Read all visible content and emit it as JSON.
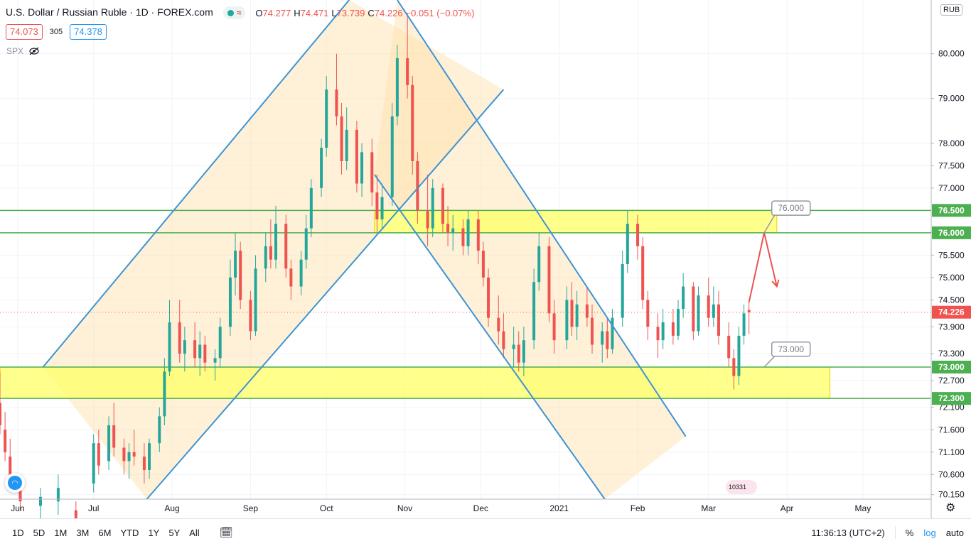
{
  "header": {
    "title": "U.S. Dollar / Russian Ruble · 1D · FOREX.com",
    "ohlc": [
      {
        "k": "O",
        "v": "74.277"
      },
      {
        "k": "H",
        "v": "74.471"
      },
      {
        "k": "L",
        "v": "73.739"
      },
      {
        "k": "C",
        "v": "74.226"
      },
      {
        "k": "",
        "v": "−0.051 (−0.07%)"
      }
    ]
  },
  "quote": {
    "bid": "74.073",
    "spread": "305",
    "ask": "74.378"
  },
  "overlay": {
    "symbol": "SPX"
  },
  "currency_label": "RUB",
  "timeframes": [
    "1D",
    "5D",
    "1M",
    "3M",
    "6M",
    "YTD",
    "1Y",
    "5Y",
    "All"
  ],
  "bottom_right": {
    "time": "11:36:13 (UTC+2)",
    "percent": "%",
    "log": "log",
    "auto": "auto"
  },
  "flag_text": "10331",
  "chart_data": {
    "type": "candlestick",
    "title": "U.S. Dollar / Russian Ruble · 1D · FOREX.com",
    "y_axis": {
      "ticks": [
        "80.000",
        "79.000",
        "78.000",
        "77.500",
        "77.000",
        "76.000",
        "75.500",
        "75.000",
        "74.500",
        "73.900",
        "73.300",
        "72.700",
        "72.100",
        "71.600",
        "71.100",
        "70.600",
        "70.150"
      ],
      "tick_values": [
        80.0,
        79.0,
        78.0,
        77.5,
        77.0,
        76.0,
        75.5,
        75.0,
        74.5,
        73.9,
        73.3,
        72.7,
        72.1,
        71.6,
        71.1,
        70.6,
        70.15
      ],
      "ylim": [
        70.05,
        81.2
      ]
    },
    "x_axis": {
      "labels": [
        "Jun",
        "Jul",
        "Aug",
        "Sep",
        "Oct",
        "Nov",
        "Dec",
        "2021",
        "Feb",
        "Mar",
        "Apr",
        "May"
      ],
      "range": [
        "2020-05-25",
        "2021-05-28"
      ]
    },
    "price_labels": [
      {
        "value": 76.5,
        "text": "76.500",
        "color": "#4caf50"
      },
      {
        "value": 76.0,
        "text": "76.000",
        "color": "#4caf50"
      },
      {
        "value": 74.226,
        "text": "74.226",
        "color": "#ef5350"
      },
      {
        "value": 73.0,
        "text": "73.000",
        "color": "#4caf50"
      },
      {
        "value": 72.3,
        "text": "72.300",
        "color": "#4caf50"
      }
    ],
    "horizontal_lines": [
      76.5,
      76.0,
      73.0,
      72.3
    ],
    "current_price": 74.226,
    "zones": [
      {
        "from": "2020-10-20",
        "to": "2021-03-28",
        "y1": 76.0,
        "y2": 76.5,
        "color": "#ffff66"
      },
      {
        "from": "2020-05-25",
        "to": "2021-04-18",
        "y1": 72.3,
        "y2": 73.0,
        "color": "#ffff66"
      }
    ],
    "callouts": [
      {
        "text": "76.000",
        "anchor_date": "2021-03-23",
        "anchor_y": 76.0,
        "box_date": "2021-03-26",
        "box_y": 76.55
      },
      {
        "text": "73.000",
        "anchor_date": "2021-03-23",
        "anchor_y": 73.0,
        "box_date": "2021-03-26",
        "box_y": 73.4
      }
    ],
    "channels": [
      {
        "name": "",
        "lines": [
          {
            "from": [
              "2020-06-11",
              73.0
            ],
            "to": [
              "2020-10-10",
              81.2
            ]
          },
          {
            "from": [
              "2020-07-22",
              70.05
            ],
            "to": [
              "2020-12-10",
              79.2
            ]
          }
        ]
      },
      {
        "name": "",
        "lines": [
          {
            "from": [
              "2020-10-29",
              81.2
            ],
            "to": [
              "2021-02-20",
              71.45
            ]
          },
          {
            "from": [
              "2020-10-20",
              77.3
            ],
            "to": [
              "2021-01-19",
              70.05
            ]
          }
        ]
      }
    ],
    "forecast_path": [
      [
        "2021-03-17",
        74.45
      ],
      [
        "2021-03-23",
        76.0
      ],
      [
        "2021-03-28",
        74.8
      ]
    ],
    "candles": [
      {
        "x": "2020-05-25",
        "o": 72.2,
        "h": 72.9,
        "l": 71.5,
        "c": 71.7
      },
      {
        "x": "2020-05-27",
        "o": 71.6,
        "h": 72.0,
        "l": 70.9,
        "c": 71.1
      },
      {
        "x": "2020-05-29",
        "o": 71.0,
        "h": 71.4,
        "l": 70.3,
        "c": 70.5
      },
      {
        "x": "2020-06-02",
        "o": 70.4,
        "h": 70.6,
        "l": 69.8,
        "c": 70.0
      },
      {
        "x": "2020-06-10",
        "o": 69.9,
        "h": 70.3,
        "l": 69.5,
        "c": 70.1
      },
      {
        "x": "2020-06-17",
        "o": 70.0,
        "h": 70.6,
        "l": 69.7,
        "c": 70.3
      },
      {
        "x": "2020-06-24",
        "o": 69.8,
        "h": 70.0,
        "l": 69.3,
        "c": 69.6
      },
      {
        "x": "2020-07-01",
        "o": 70.4,
        "h": 71.5,
        "l": 70.2,
        "c": 71.3
      },
      {
        "x": "2020-07-03",
        "o": 71.3,
        "h": 71.6,
        "l": 70.6,
        "c": 70.8
      },
      {
        "x": "2020-07-07",
        "o": 70.9,
        "h": 71.9,
        "l": 70.7,
        "c": 71.7
      },
      {
        "x": "2020-07-09",
        "o": 71.7,
        "h": 72.2,
        "l": 71.0,
        "c": 71.2
      },
      {
        "x": "2020-07-13",
        "o": 71.2,
        "h": 71.4,
        "l": 70.6,
        "c": 70.9
      },
      {
        "x": "2020-07-15",
        "o": 70.9,
        "h": 71.3,
        "l": 70.5,
        "c": 71.1
      },
      {
        "x": "2020-07-17",
        "o": 71.1,
        "h": 71.6,
        "l": 70.8,
        "c": 71.0
      },
      {
        "x": "2020-07-21",
        "o": 71.0,
        "h": 71.3,
        "l": 70.4,
        "c": 70.7
      },
      {
        "x": "2020-07-23",
        "o": 70.7,
        "h": 71.4,
        "l": 70.5,
        "c": 71.3
      },
      {
        "x": "2020-07-27",
        "o": 71.3,
        "h": 72.1,
        "l": 71.1,
        "c": 71.9
      },
      {
        "x": "2020-07-29",
        "o": 71.9,
        "h": 73.2,
        "l": 71.7,
        "c": 72.9
      },
      {
        "x": "2020-07-31",
        "o": 72.9,
        "h": 74.5,
        "l": 72.8,
        "c": 74.0
      },
      {
        "x": "2020-08-04",
        "o": 74.0,
        "h": 74.5,
        "l": 73.1,
        "c": 73.3
      },
      {
        "x": "2020-08-06",
        "o": 73.3,
        "h": 73.9,
        "l": 72.9,
        "c": 73.6
      },
      {
        "x": "2020-08-10",
        "o": 73.6,
        "h": 74.0,
        "l": 73.0,
        "c": 73.2
      },
      {
        "x": "2020-08-12",
        "o": 73.2,
        "h": 73.8,
        "l": 72.8,
        "c": 73.5
      },
      {
        "x": "2020-08-14",
        "o": 73.5,
        "h": 73.7,
        "l": 72.9,
        "c": 73.1
      },
      {
        "x": "2020-08-18",
        "o": 73.1,
        "h": 73.4,
        "l": 72.7,
        "c": 73.2
      },
      {
        "x": "2020-08-20",
        "o": 73.2,
        "h": 74.1,
        "l": 73.0,
        "c": 73.9
      },
      {
        "x": "2020-08-24",
        "o": 73.9,
        "h": 75.4,
        "l": 73.7,
        "c": 75.0
      },
      {
        "x": "2020-08-26",
        "o": 75.0,
        "h": 76.0,
        "l": 74.6,
        "c": 75.6
      },
      {
        "x": "2020-08-28",
        "o": 75.6,
        "h": 75.8,
        "l": 74.3,
        "c": 74.5
      },
      {
        "x": "2020-09-01",
        "o": 74.5,
        "h": 74.7,
        "l": 73.6,
        "c": 73.8
      },
      {
        "x": "2020-09-03",
        "o": 73.8,
        "h": 75.5,
        "l": 73.7,
        "c": 75.2
      },
      {
        "x": "2020-09-07",
        "o": 75.2,
        "h": 76.0,
        "l": 74.9,
        "c": 75.7
      },
      {
        "x": "2020-09-09",
        "o": 75.7,
        "h": 76.3,
        "l": 75.2,
        "c": 75.4
      },
      {
        "x": "2020-09-11",
        "o": 75.4,
        "h": 76.6,
        "l": 75.2,
        "c": 76.2
      },
      {
        "x": "2020-09-15",
        "o": 76.2,
        "h": 76.4,
        "l": 75.0,
        "c": 75.2
      },
      {
        "x": "2020-09-17",
        "o": 75.2,
        "h": 75.4,
        "l": 74.5,
        "c": 74.8
      },
      {
        "x": "2020-09-21",
        "o": 74.8,
        "h": 75.6,
        "l": 74.6,
        "c": 75.4
      },
      {
        "x": "2020-09-23",
        "o": 75.4,
        "h": 76.4,
        "l": 75.2,
        "c": 76.1
      },
      {
        "x": "2020-09-25",
        "o": 76.1,
        "h": 77.2,
        "l": 75.9,
        "c": 77.0
      },
      {
        "x": "2020-09-29",
        "o": 77.0,
        "h": 78.1,
        "l": 76.8,
        "c": 77.9
      },
      {
        "x": "2020-10-01",
        "o": 77.9,
        "h": 79.5,
        "l": 77.7,
        "c": 79.2
      },
      {
        "x": "2020-10-05",
        "o": 79.2,
        "h": 80.0,
        "l": 78.4,
        "c": 78.6
      },
      {
        "x": "2020-10-07",
        "o": 78.6,
        "h": 78.9,
        "l": 77.3,
        "c": 77.6
      },
      {
        "x": "2020-10-09",
        "o": 77.6,
        "h": 78.8,
        "l": 77.4,
        "c": 78.3
      },
      {
        "x": "2020-10-13",
        "o": 78.3,
        "h": 78.5,
        "l": 76.9,
        "c": 77.1
      },
      {
        "x": "2020-10-15",
        "o": 77.1,
        "h": 78.0,
        "l": 76.8,
        "c": 77.8
      },
      {
        "x": "2020-10-19",
        "o": 77.8,
        "h": 78.1,
        "l": 76.6,
        "c": 76.9
      },
      {
        "x": "2020-10-21",
        "o": 76.9,
        "h": 77.3,
        "l": 76.0,
        "c": 76.3
      },
      {
        "x": "2020-10-23",
        "o": 76.3,
        "h": 77.1,
        "l": 76.1,
        "c": 76.8
      },
      {
        "x": "2020-10-27",
        "o": 76.8,
        "h": 78.9,
        "l": 76.6,
        "c": 78.6
      },
      {
        "x": "2020-10-29",
        "o": 78.6,
        "h": 80.2,
        "l": 78.4,
        "c": 79.9
      },
      {
        "x": "2020-11-02",
        "o": 79.9,
        "h": 80.9,
        "l": 79.0,
        "c": 79.3
      },
      {
        "x": "2020-11-04",
        "o": 79.3,
        "h": 79.5,
        "l": 77.3,
        "c": 77.6
      },
      {
        "x": "2020-11-06",
        "o": 77.6,
        "h": 77.8,
        "l": 76.2,
        "c": 76.5
      },
      {
        "x": "2020-11-10",
        "o": 76.5,
        "h": 77.3,
        "l": 75.7,
        "c": 76.1
      },
      {
        "x": "2020-11-12",
        "o": 76.1,
        "h": 77.2,
        "l": 75.9,
        "c": 77.0
      },
      {
        "x": "2020-11-16",
        "o": 77.0,
        "h": 77.1,
        "l": 76.0,
        "c": 76.2
      },
      {
        "x": "2020-11-18",
        "o": 76.2,
        "h": 76.6,
        "l": 75.7,
        "c": 76.0
      },
      {
        "x": "2020-11-20",
        "o": 76.0,
        "h": 76.4,
        "l": 75.6,
        "c": 76.1
      },
      {
        "x": "2020-11-24",
        "o": 76.1,
        "h": 76.3,
        "l": 75.5,
        "c": 75.7
      },
      {
        "x": "2020-11-26",
        "o": 75.7,
        "h": 76.5,
        "l": 75.5,
        "c": 76.3
      },
      {
        "x": "2020-11-30",
        "o": 76.3,
        "h": 76.5,
        "l": 75.3,
        "c": 75.6
      },
      {
        "x": "2020-12-02",
        "o": 75.6,
        "h": 75.8,
        "l": 74.8,
        "c": 75.0
      },
      {
        "x": "2020-12-04",
        "o": 75.0,
        "h": 75.2,
        "l": 73.9,
        "c": 74.1
      },
      {
        "x": "2020-12-08",
        "o": 74.1,
        "h": 74.6,
        "l": 73.5,
        "c": 73.8
      },
      {
        "x": "2020-12-10",
        "o": 73.8,
        "h": 74.2,
        "l": 73.2,
        "c": 73.4
      },
      {
        "x": "2020-12-14",
        "o": 73.4,
        "h": 73.9,
        "l": 73.0,
        "c": 73.5
      },
      {
        "x": "2020-12-16",
        "o": 73.5,
        "h": 73.8,
        "l": 72.9,
        "c": 73.1
      },
      {
        "x": "2020-12-18",
        "o": 73.1,
        "h": 73.9,
        "l": 72.8,
        "c": 73.6
      },
      {
        "x": "2020-12-22",
        "o": 73.6,
        "h": 75.2,
        "l": 73.4,
        "c": 74.9
      },
      {
        "x": "2020-12-24",
        "o": 74.9,
        "h": 76.0,
        "l": 74.7,
        "c": 75.7
      },
      {
        "x": "2020-12-28",
        "o": 75.7,
        "h": 75.9,
        "l": 74.0,
        "c": 74.2
      },
      {
        "x": "2020-12-30",
        "o": 74.2,
        "h": 74.5,
        "l": 73.3,
        "c": 73.6
      },
      {
        "x": "2021-01-04",
        "o": 73.6,
        "h": 74.8,
        "l": 73.4,
        "c": 74.5
      },
      {
        "x": "2021-01-06",
        "o": 74.5,
        "h": 74.9,
        "l": 73.7,
        "c": 73.9
      },
      {
        "x": "2021-01-08",
        "o": 73.9,
        "h": 74.7,
        "l": 73.6,
        "c": 74.4
      },
      {
        "x": "2021-01-12",
        "o": 74.4,
        "h": 74.8,
        "l": 73.9,
        "c": 74.1
      },
      {
        "x": "2021-01-14",
        "o": 74.1,
        "h": 74.4,
        "l": 73.3,
        "c": 73.5
      },
      {
        "x": "2021-01-18",
        "o": 73.5,
        "h": 74.0,
        "l": 73.1,
        "c": 73.8
      },
      {
        "x": "2021-01-20",
        "o": 73.8,
        "h": 74.1,
        "l": 73.2,
        "c": 73.4
      },
      {
        "x": "2021-01-22",
        "o": 73.4,
        "h": 74.3,
        "l": 73.3,
        "c": 74.1
      },
      {
        "x": "2021-01-26",
        "o": 74.1,
        "h": 75.6,
        "l": 73.9,
        "c": 75.3
      },
      {
        "x": "2021-01-28",
        "o": 75.3,
        "h": 76.5,
        "l": 75.1,
        "c": 76.2
      },
      {
        "x": "2021-02-01",
        "o": 76.2,
        "h": 76.4,
        "l": 75.4,
        "c": 75.7
      },
      {
        "x": "2021-02-03",
        "o": 75.7,
        "h": 75.9,
        "l": 74.3,
        "c": 74.5
      },
      {
        "x": "2021-02-05",
        "o": 74.5,
        "h": 74.7,
        "l": 73.6,
        "c": 73.9
      },
      {
        "x": "2021-02-09",
        "o": 73.9,
        "h": 74.2,
        "l": 73.2,
        "c": 73.6
      },
      {
        "x": "2021-02-11",
        "o": 73.6,
        "h": 74.3,
        "l": 73.4,
        "c": 74.0
      },
      {
        "x": "2021-02-15",
        "o": 74.0,
        "h": 74.3,
        "l": 73.5,
        "c": 73.7
      },
      {
        "x": "2021-02-17",
        "o": 73.7,
        "h": 74.5,
        "l": 73.6,
        "c": 74.3
      },
      {
        "x": "2021-02-19",
        "o": 74.3,
        "h": 75.1,
        "l": 74.1,
        "c": 74.8
      },
      {
        "x": "2021-02-23",
        "o": 74.8,
        "h": 74.9,
        "l": 73.6,
        "c": 73.8
      },
      {
        "x": "2021-02-25",
        "o": 73.8,
        "h": 74.8,
        "l": 73.7,
        "c": 74.6
      },
      {
        "x": "2021-03-01",
        "o": 74.6,
        "h": 75.0,
        "l": 73.9,
        "c": 74.1
      },
      {
        "x": "2021-03-03",
        "o": 74.1,
        "h": 74.8,
        "l": 73.9,
        "c": 74.4
      },
      {
        "x": "2021-03-05",
        "o": 74.4,
        "h": 74.7,
        "l": 73.5,
        "c": 73.7
      },
      {
        "x": "2021-03-09",
        "o": 73.7,
        "h": 74.0,
        "l": 73.0,
        "c": 73.2
      },
      {
        "x": "2021-03-11",
        "o": 73.2,
        "h": 73.4,
        "l": 72.5,
        "c": 72.8
      },
      {
        "x": "2021-03-13",
        "o": 72.8,
        "h": 73.9,
        "l": 72.6,
        "c": 73.7
      },
      {
        "x": "2021-03-15",
        "o": 73.7,
        "h": 74.4,
        "l": 73.5,
        "c": 74.2
      },
      {
        "x": "2021-03-17",
        "o": 74.277,
        "h": 74.471,
        "l": 73.739,
        "c": 74.226
      }
    ]
  }
}
